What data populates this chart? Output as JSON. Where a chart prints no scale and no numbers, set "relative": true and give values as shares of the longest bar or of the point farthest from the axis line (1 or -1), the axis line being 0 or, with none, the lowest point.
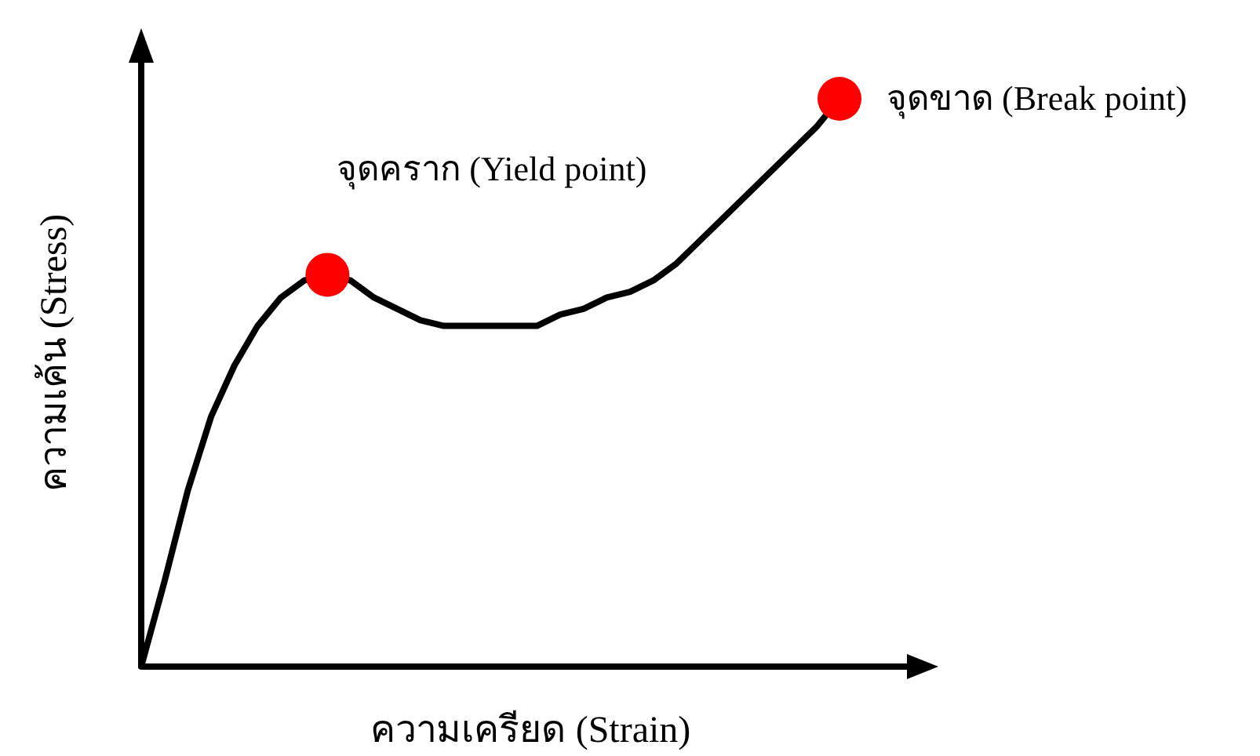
{
  "chart_data": {
    "type": "line",
    "relative": true,
    "xlabel": "ความเครียด (Strain)",
    "ylabel": "ความเค้น (Stress)",
    "marker": "none",
    "line_style": "solid",
    "categories": [
      null,
      null,
      null,
      null,
      null,
      null,
      null,
      null,
      null,
      null,
      null,
      null,
      null,
      null,
      null,
      null,
      null,
      null,
      null,
      null,
      null,
      null,
      null,
      null,
      null,
      null,
      null,
      null,
      null,
      null,
      null
    ],
    "series": [
      {
        "color": "#000000",
        "values": [
          0,
          0.15,
          0.31,
          0.44,
          0.53,
          0.6,
          0.65,
          0.68,
          0.69,
          0.68,
          0.65,
          0.63,
          0.61,
          0.6,
          0.6,
          0.6,
          0.6,
          0.6,
          0.62,
          0.63,
          0.65,
          0.66,
          0.68,
          0.71,
          0.75,
          0.79,
          0.83,
          0.87,
          0.91,
          0.95,
          1.0
        ]
      }
    ],
    "annotations": [
      "จุดคราก (Yield point)",
      "จุดขาด (Break point)"
    ]
  }
}
